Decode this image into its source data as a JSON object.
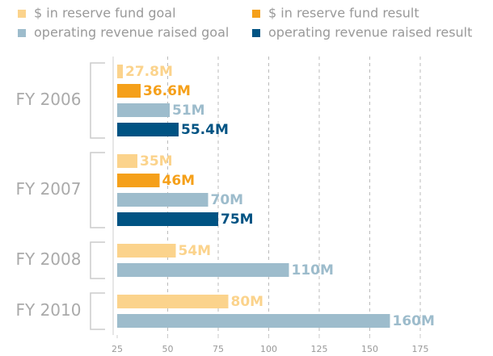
{
  "chart_data": {
    "type": "bar",
    "orientation": "horizontal",
    "categories": [
      "FY 2006",
      "FY 2007",
      "FY 2008",
      "FY 2010"
    ],
    "series": [
      {
        "name": "$ in reserve fund goal",
        "color": "#fbd38c",
        "values": [
          27.8,
          35,
          54,
          80
        ],
        "value_labels": [
          "27.8M",
          "35M",
          "54M",
          "80M"
        ]
      },
      {
        "name": "$ in reserve fund result",
        "color": "#f5a01a",
        "values": [
          36.6,
          46,
          null,
          null
        ],
        "value_labels": [
          "36.6M",
          "46M",
          null,
          null
        ]
      },
      {
        "name": "operating revenue raised goal",
        "color": "#9dbccc",
        "values": [
          51,
          70,
          110,
          160
        ],
        "value_labels": [
          "51M",
          "70M",
          "110M",
          "160M"
        ]
      },
      {
        "name": "operating revenue raised result",
        "color": "#005383",
        "values": [
          55.4,
          75,
          null,
          null
        ],
        "value_labels": [
          "55.4M",
          "75M",
          null,
          null
        ]
      }
    ],
    "xlim": [
      23,
      180
    ],
    "xticks": [
      25,
      50,
      75,
      100,
      125,
      150,
      175
    ],
    "grid": true,
    "legend": "top"
  }
}
